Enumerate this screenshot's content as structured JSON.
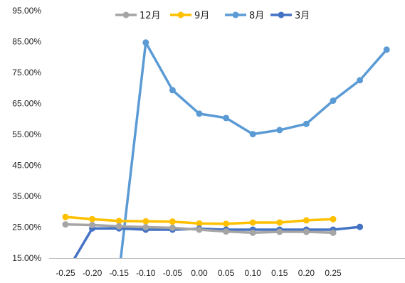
{
  "chart_data": {
    "type": "line",
    "x": [
      -0.25,
      -0.2,
      -0.15,
      -0.1,
      -0.05,
      0.0,
      0.05,
      0.1,
      0.15,
      0.2,
      0.25,
      0.3,
      0.35
    ],
    "x_tick_labels": [
      "-0.25",
      "-0.20",
      "-0.15",
      "-0.10",
      "-0.05",
      "0.00",
      "0.05",
      "0.10",
      "0.15",
      "0.20",
      "0.25"
    ],
    "ylim": [
      0.15,
      0.95
    ],
    "y_ticks": [
      0.15,
      0.25,
      0.35,
      0.45,
      0.55,
      0.65,
      0.75,
      0.85,
      0.95
    ],
    "y_tick_labels": [
      "15.00%",
      "25.00%",
      "35.00%",
      "45.00%",
      "55.00%",
      "65.00%",
      "75.00%",
      "85.00%",
      "95.00%"
    ],
    "grid": false,
    "legend": "top",
    "series": [
      {
        "name": "12月",
        "color": "#A5A5A5",
        "values": [
          0.259,
          0.257,
          0.253,
          0.25,
          0.248,
          0.242,
          0.236,
          0.232,
          0.235,
          0.235,
          0.232,
          null,
          null
        ]
      },
      {
        "name": "9月",
        "color": "#FFC000",
        "values": [
          0.283,
          0.276,
          0.27,
          0.269,
          0.268,
          0.262,
          0.261,
          0.265,
          0.265,
          0.272,
          0.276,
          null,
          null
        ]
      },
      {
        "name": "8月",
        "color": "#5B9BD5",
        "values": [
          null,
          null,
          0.1,
          0.847,
          0.693,
          0.617,
          0.603,
          0.551,
          0.564,
          0.584,
          0.659,
          0.725,
          0.824
        ]
      },
      {
        "name": "3月",
        "color": "#4472C4",
        "values": [
          0.1,
          0.246,
          0.246,
          0.242,
          0.242,
          0.245,
          0.242,
          0.242,
          0.242,
          0.242,
          0.242,
          0.251,
          null
        ]
      }
    ]
  }
}
